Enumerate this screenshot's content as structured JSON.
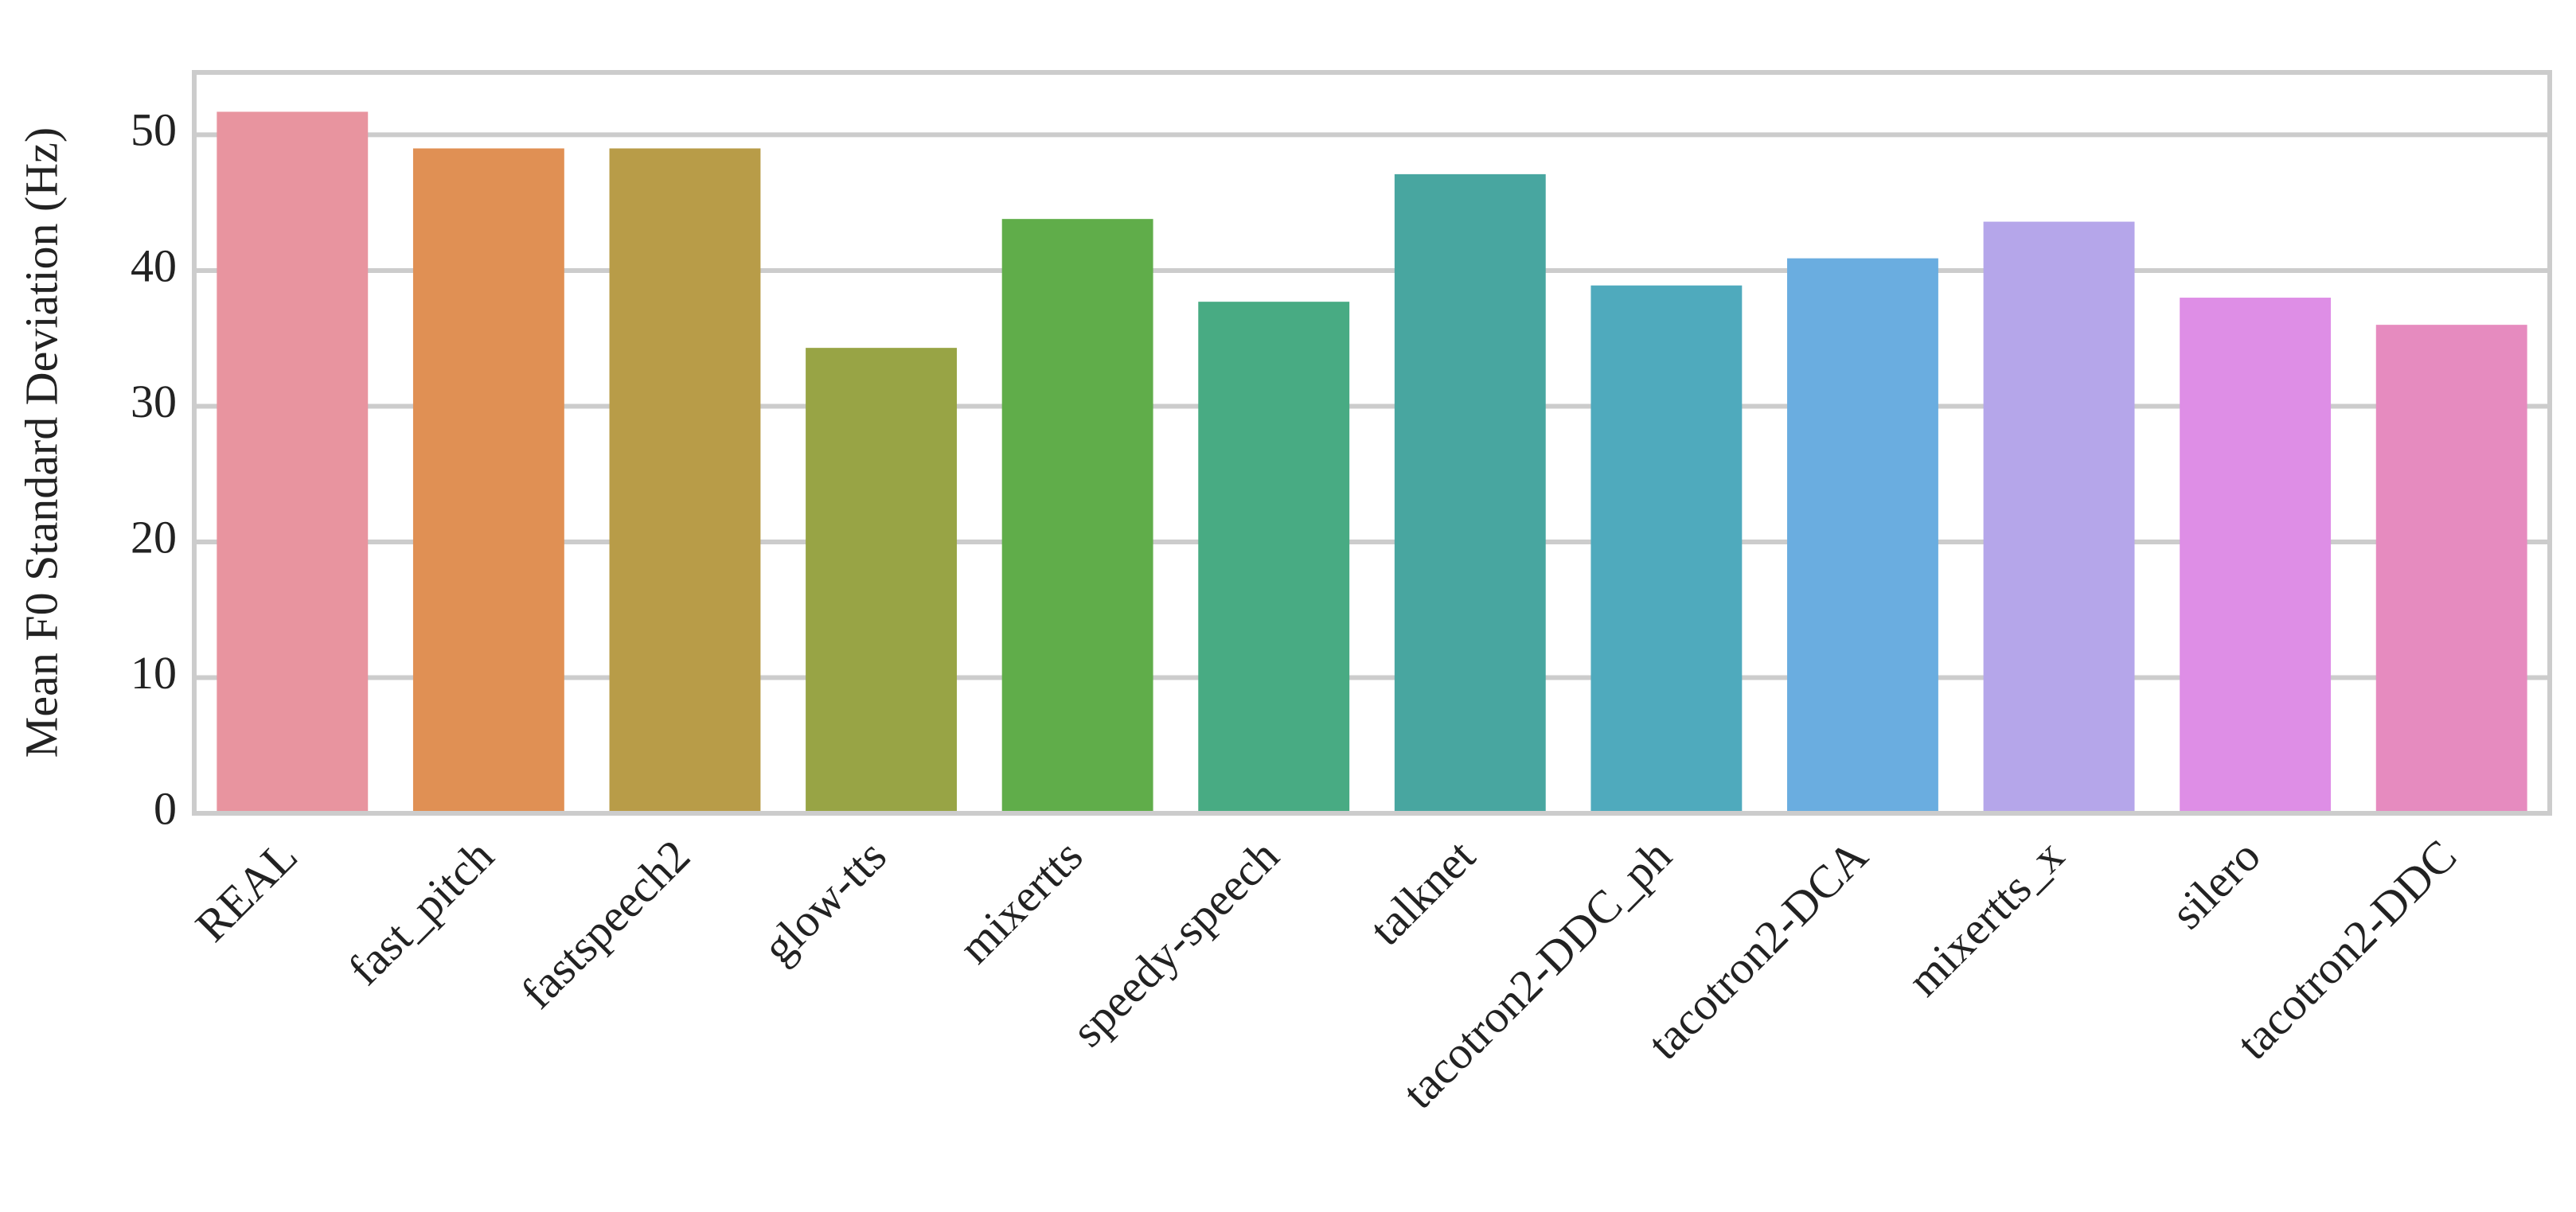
{
  "chart_data": {
    "type": "bar",
    "y_label": "Mean F0 Standard Deviation (Hz)",
    "categories": [
      "REAL",
      "fast_pitch",
      "fastspeech2",
      "glow-tts",
      "mixertts",
      "speedy-speech",
      "talknet",
      "tacotron2-DDC_ph",
      "tacotron2-DCA",
      "mixertts_x",
      "silero",
      "tacotron2-DDC"
    ],
    "values": [
      51.7,
      49.0,
      49.0,
      34.3,
      43.8,
      37.7,
      47.1,
      38.9,
      40.9,
      43.6,
      38.0,
      36.0
    ],
    "colors": [
      "#e8949f",
      "#e09054",
      "#b89c48",
      "#98a445",
      "#60ad4a",
      "#48ab83",
      "#48a6a0",
      "#4faabd",
      "#6aade0",
      "#b5a6ea",
      "#de8ee6",
      "#e68bbf"
    ],
    "ylim": [
      0,
      54.6
    ],
    "yticks": [
      0,
      10,
      20,
      30,
      40,
      50
    ],
    "grid": true
  }
}
